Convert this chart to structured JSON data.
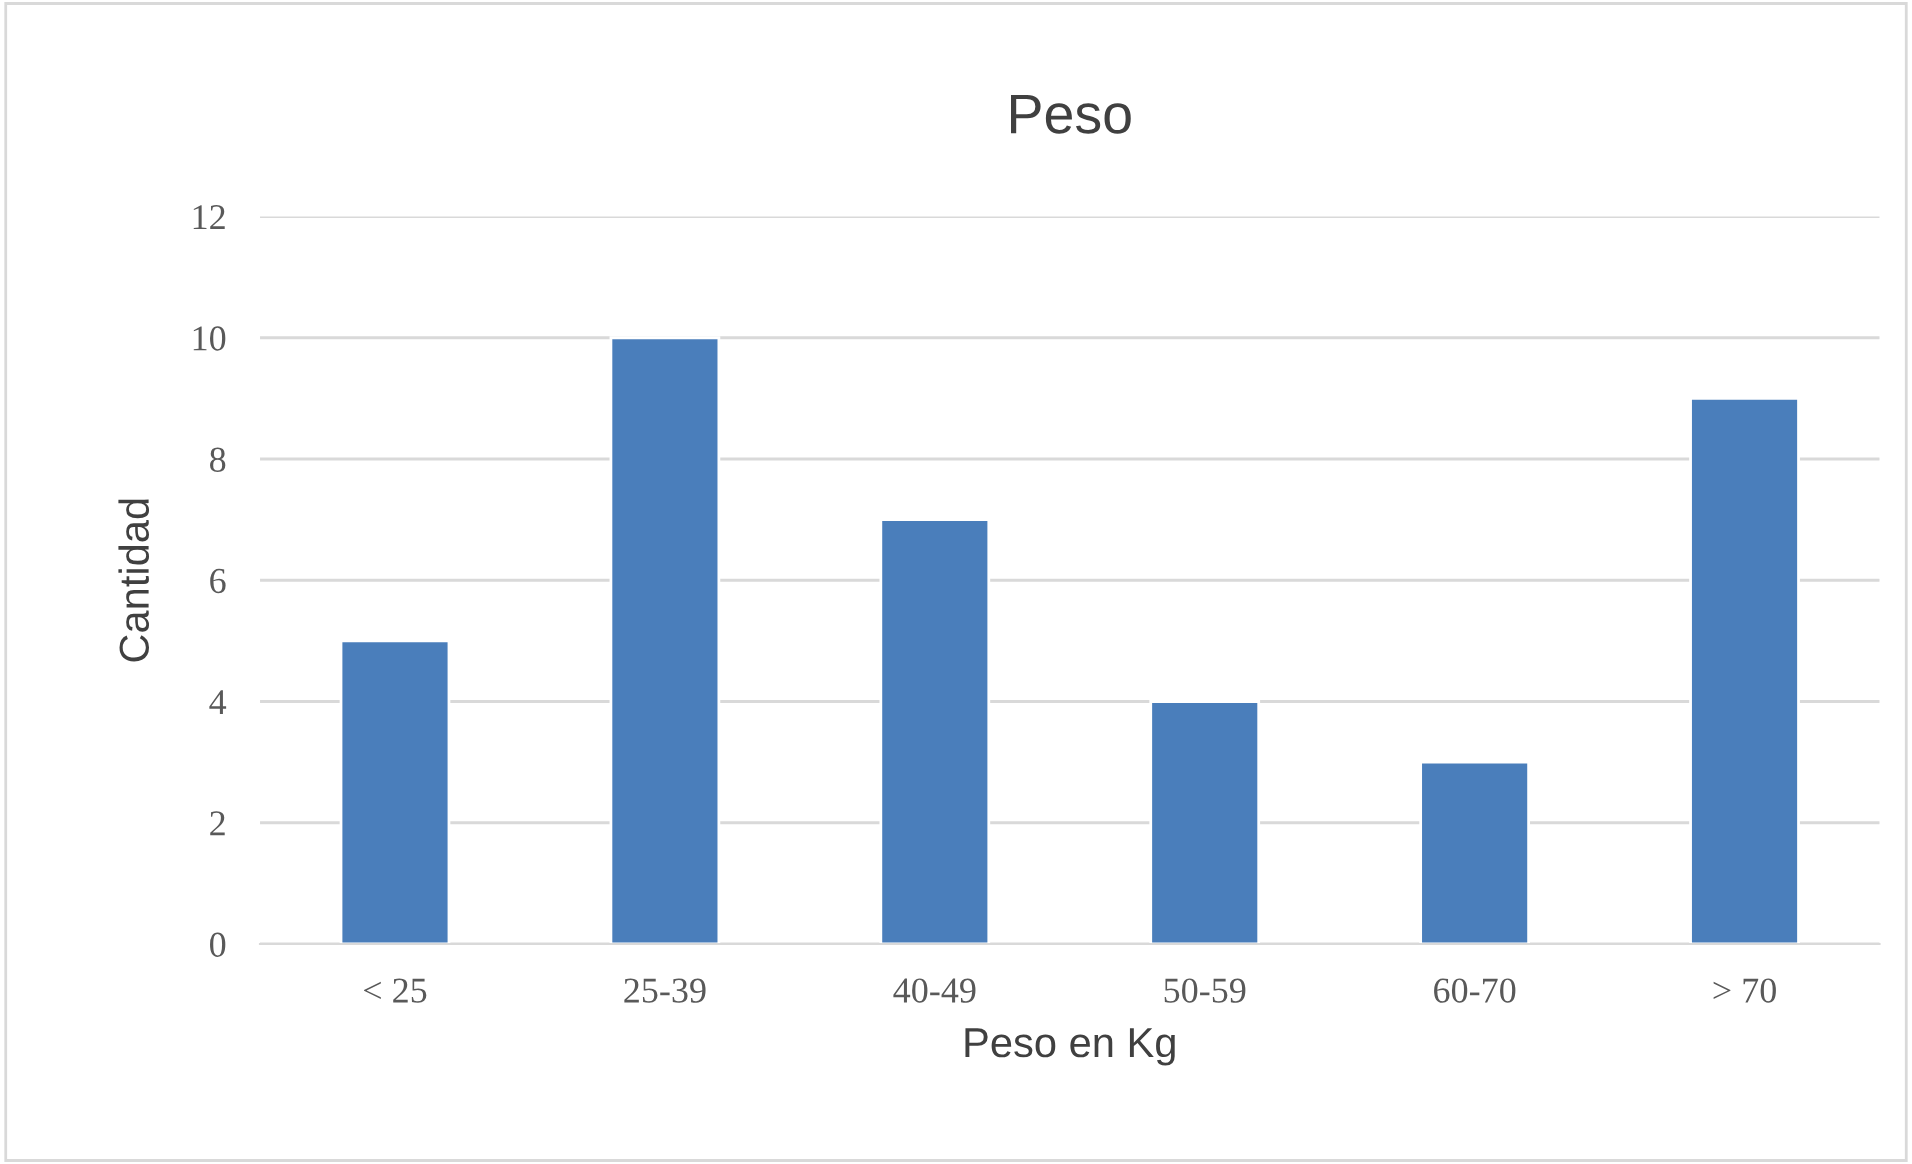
{
  "chart_data": {
    "type": "bar",
    "title": "Peso",
    "xlabel": "Peso en Kg",
    "ylabel": "Cantidad",
    "categories": [
      "< 25",
      "25-39",
      "40-49",
      "50-59",
      "60-70",
      "> 70"
    ],
    "values": [
      5,
      10,
      7,
      4,
      3,
      9
    ],
    "color": "#4a7ebb",
    "ylim": [
      0,
      12
    ],
    "yticks": [
      0,
      2,
      4,
      6,
      8,
      10,
      12
    ],
    "grid": "y",
    "legend": false
  }
}
